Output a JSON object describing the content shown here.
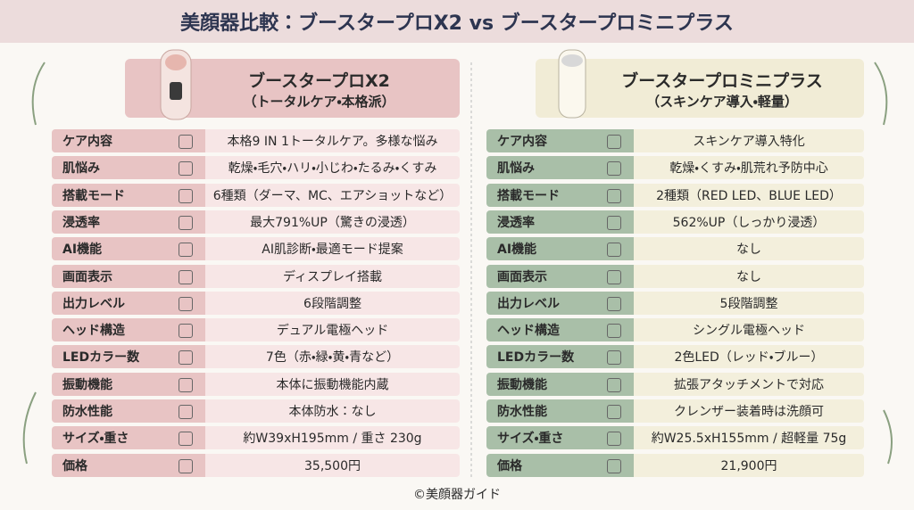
{
  "title": "美顔器比較：ブースタープロX2 vs ブースタープロミニプラス",
  "left": {
    "name": "ブースタープロX2",
    "subtitle": "（トータルケア・本格派）",
    "rows": [
      {
        "label": "ケア内容",
        "value": "本格9 IN 1トータルケア。多様な悩み"
      },
      {
        "label": "肌悩み",
        "value": "乾燥・毛穴・ハリ・小じわ・たるみ・くすみ"
      },
      {
        "label": "搭載モード",
        "value": "6種類（ダーマ、MC、エアショットなど）"
      },
      {
        "label": "浸透率",
        "value": "最大791%UP（驚きの浸透）"
      },
      {
        "label": "AI機能",
        "value": "AI肌診断・最適モード提案"
      },
      {
        "label": "画面表示",
        "value": "ディスプレイ搭載"
      },
      {
        "label": "出力レベル",
        "value": "6段階調整"
      },
      {
        "label": "ヘッド構造",
        "value": "デュアル電極ヘッド"
      },
      {
        "label": "LEDカラー数",
        "value": "7色（赤・緑・黄・青など）"
      },
      {
        "label": "振動機能",
        "value": "本体に振動機能内蔵"
      },
      {
        "label": "防水性能",
        "value": "本体防水：なし"
      },
      {
        "label": "サイズ・重さ",
        "value": "約W39xH195mm / 重さ 230g"
      },
      {
        "label": "価格",
        "value": "35,500円"
      }
    ]
  },
  "right": {
    "name": "ブースタープロミニプラス",
    "subtitle": "（スキンケア導入・軽量）",
    "rows": [
      {
        "label": "ケア内容",
        "value": "スキンケア導入特化"
      },
      {
        "label": "肌悩み",
        "value": "乾燥・くすみ・肌荒れ予防中心"
      },
      {
        "label": "搭載モード",
        "value": "2種類（RED LED、BLUE LED）"
      },
      {
        "label": "浸透率",
        "value": "562%UP（しっかり浸透）"
      },
      {
        "label": "AI機能",
        "value": "なし"
      },
      {
        "label": "画面表示",
        "value": "なし"
      },
      {
        "label": "出力レベル",
        "value": "5段階調整"
      },
      {
        "label": "ヘッド構造",
        "value": "シングル電極ヘッド"
      },
      {
        "label": "LEDカラー数",
        "value": "2色LED（レッド・ブルー）"
      },
      {
        "label": "振動機能",
        "value": "拡張アタッチメントで対応"
      },
      {
        "label": "防水性能",
        "value": "クレンザー装着時は洗顔可"
      },
      {
        "label": "サイズ・重さ",
        "value": "約W25.5xH155mm / 超軽量 75g"
      },
      {
        "label": "価格",
        "value": "21,900円"
      }
    ]
  },
  "footer": "©美顔器ガイド"
}
